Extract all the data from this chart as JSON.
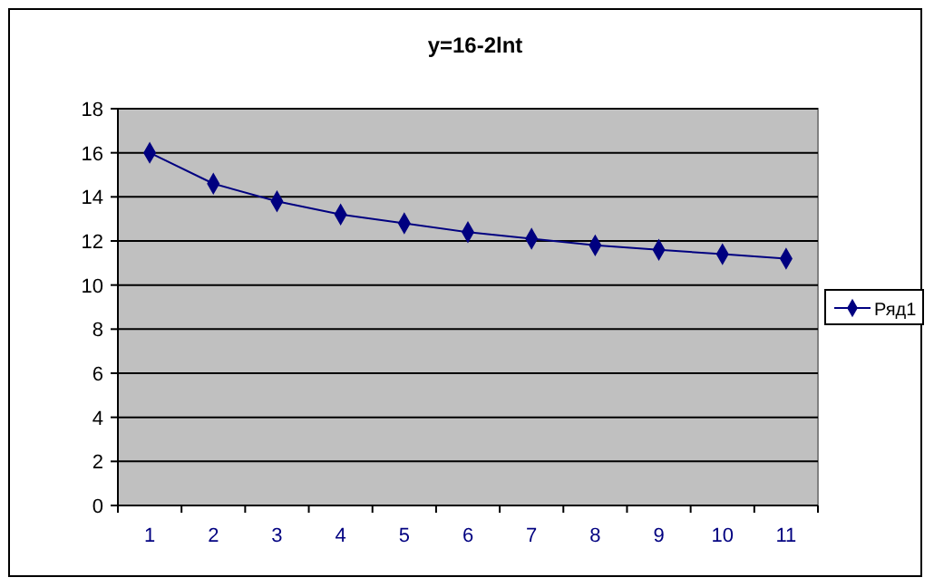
{
  "chart_data": {
    "type": "line",
    "title": "y=16-2lnt",
    "categories": [
      "1",
      "2",
      "3",
      "4",
      "5",
      "6",
      "7",
      "8",
      "9",
      "10",
      "11"
    ],
    "series": [
      {
        "name": "Ряд1",
        "color": "#000080",
        "values": [
          16,
          14.6,
          13.8,
          13.2,
          12.8,
          12.4,
          12.1,
          11.8,
          11.6,
          11.4,
          11.2
        ]
      }
    ],
    "ylim": [
      0,
      18
    ],
    "yticks": [
      0,
      2,
      4,
      6,
      8,
      10,
      12,
      14,
      16,
      18
    ],
    "grid": "y",
    "legend": "right",
    "marker": "diamond"
  }
}
